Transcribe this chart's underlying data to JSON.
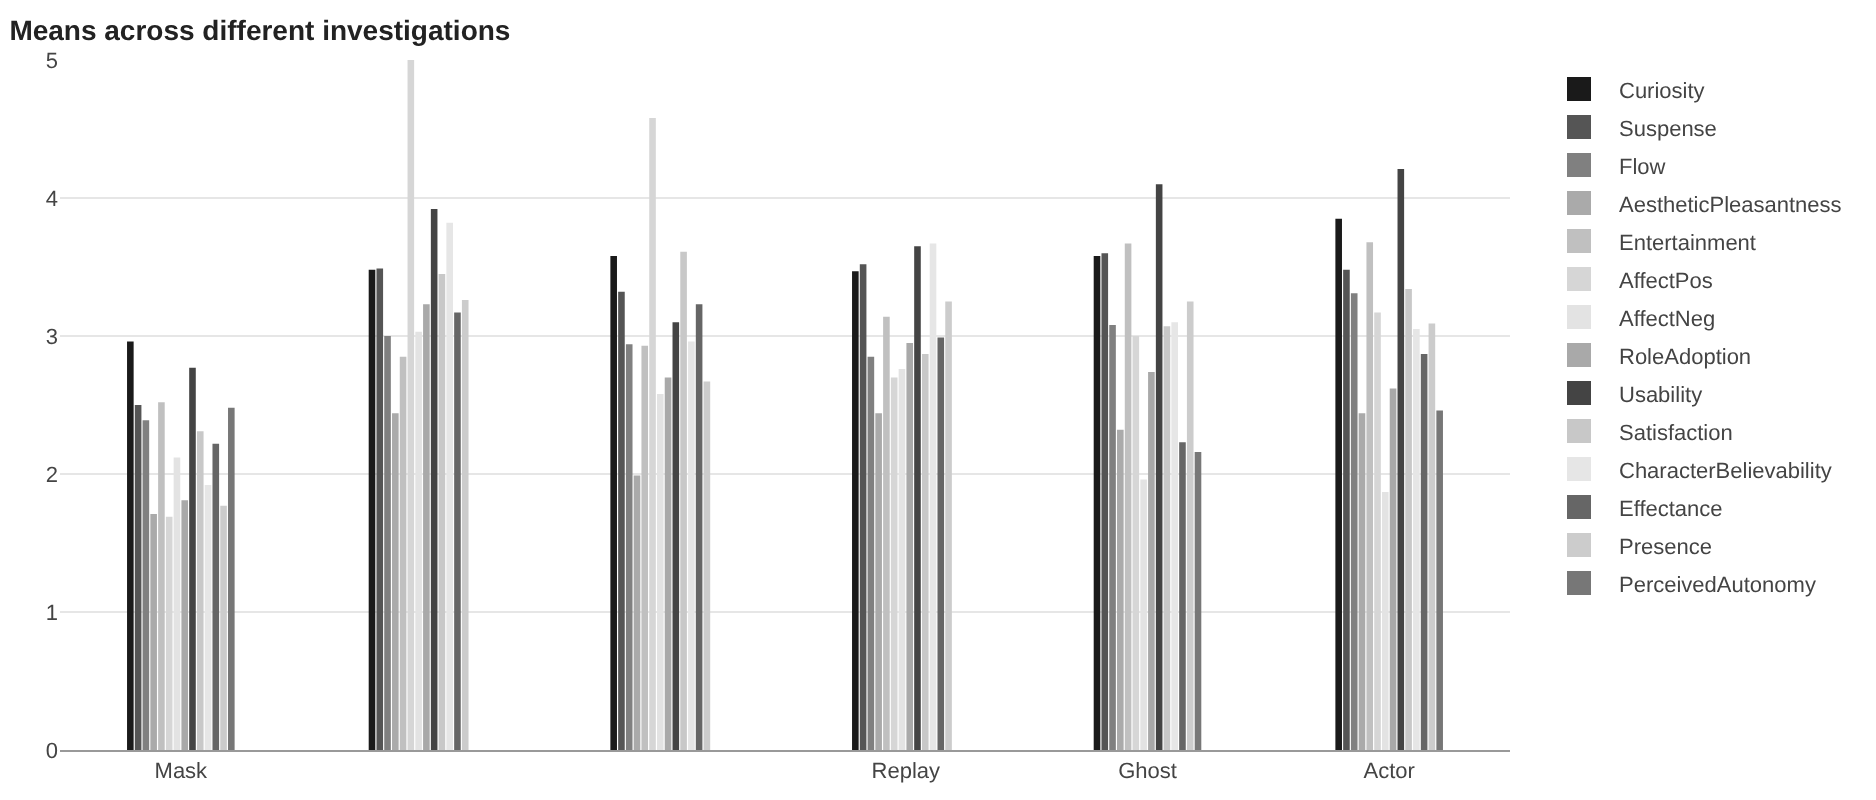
{
  "chart_data": {
    "type": "bar",
    "title": "Means across different investigations",
    "categories": [
      "Mask",
      null,
      null,
      "Replay",
      "Ghost",
      "Actor"
    ],
    "series": [
      {
        "name": "Curiosity",
        "color": "#1a1a1a",
        "values": [
          2.96,
          3.48,
          3.58,
          3.47,
          3.58,
          3.85
        ]
      },
      {
        "name": "Suspense",
        "color": "#555555",
        "values": [
          2.5,
          3.49,
          3.32,
          3.52,
          3.6,
          3.48
        ]
      },
      {
        "name": "Flow",
        "color": "#808080",
        "values": [
          2.39,
          3.0,
          2.94,
          2.85,
          3.08,
          3.31
        ]
      },
      {
        "name": "AestheticPleasantness",
        "color": "#aaaaaa",
        "values": [
          1.71,
          2.44,
          1.99,
          2.44,
          2.32,
          2.44
        ]
      },
      {
        "name": "Entertainment",
        "color": "#c0c0c0",
        "values": [
          2.52,
          2.85,
          2.93,
          3.14,
          3.67,
          3.68
        ]
      },
      {
        "name": "AffectPos",
        "color": "#d6d6d6",
        "values": [
          1.69,
          5.0,
          4.58,
          2.7,
          3.0,
          3.17
        ]
      },
      {
        "name": "AffectNeg",
        "color": "#e3e3e3",
        "values": [
          2.12,
          3.03,
          2.58,
          2.76,
          1.96,
          1.87
        ]
      },
      {
        "name": "RoleAdoption",
        "color": "#a9a9a9",
        "values": [
          1.81,
          3.23,
          2.7,
          2.95,
          2.74,
          2.62
        ]
      },
      {
        "name": "Usability",
        "color": "#444444",
        "values": [
          2.77,
          3.92,
          3.1,
          3.65,
          4.1,
          4.21
        ]
      },
      {
        "name": "Satisfaction",
        "color": "#c8c8c8",
        "values": [
          2.31,
          3.45,
          3.61,
          2.87,
          3.07,
          3.34
        ]
      },
      {
        "name": "CharacterBelievability",
        "color": "#e6e6e6",
        "values": [
          1.92,
          3.82,
          2.96,
          3.67,
          3.1,
          3.05
        ]
      },
      {
        "name": "Effectance",
        "color": "#666666",
        "values": [
          2.22,
          3.17,
          3.23,
          2.99,
          2.23,
          2.87
        ]
      },
      {
        "name": "Presence",
        "color": "#cccccc",
        "values": [
          1.77,
          3.26,
          2.67,
          3.25,
          3.25,
          3.09
        ]
      },
      {
        "name": "PerceivedAutonomy",
        "color": "#777777",
        "values": [
          2.48,
          null,
          null,
          null,
          2.16,
          2.46
        ]
      }
    ],
    "ylim": [
      0,
      5
    ],
    "yticks": [
      0,
      1,
      2,
      3,
      4,
      5
    ],
    "grid": "y",
    "legend": "right"
  }
}
